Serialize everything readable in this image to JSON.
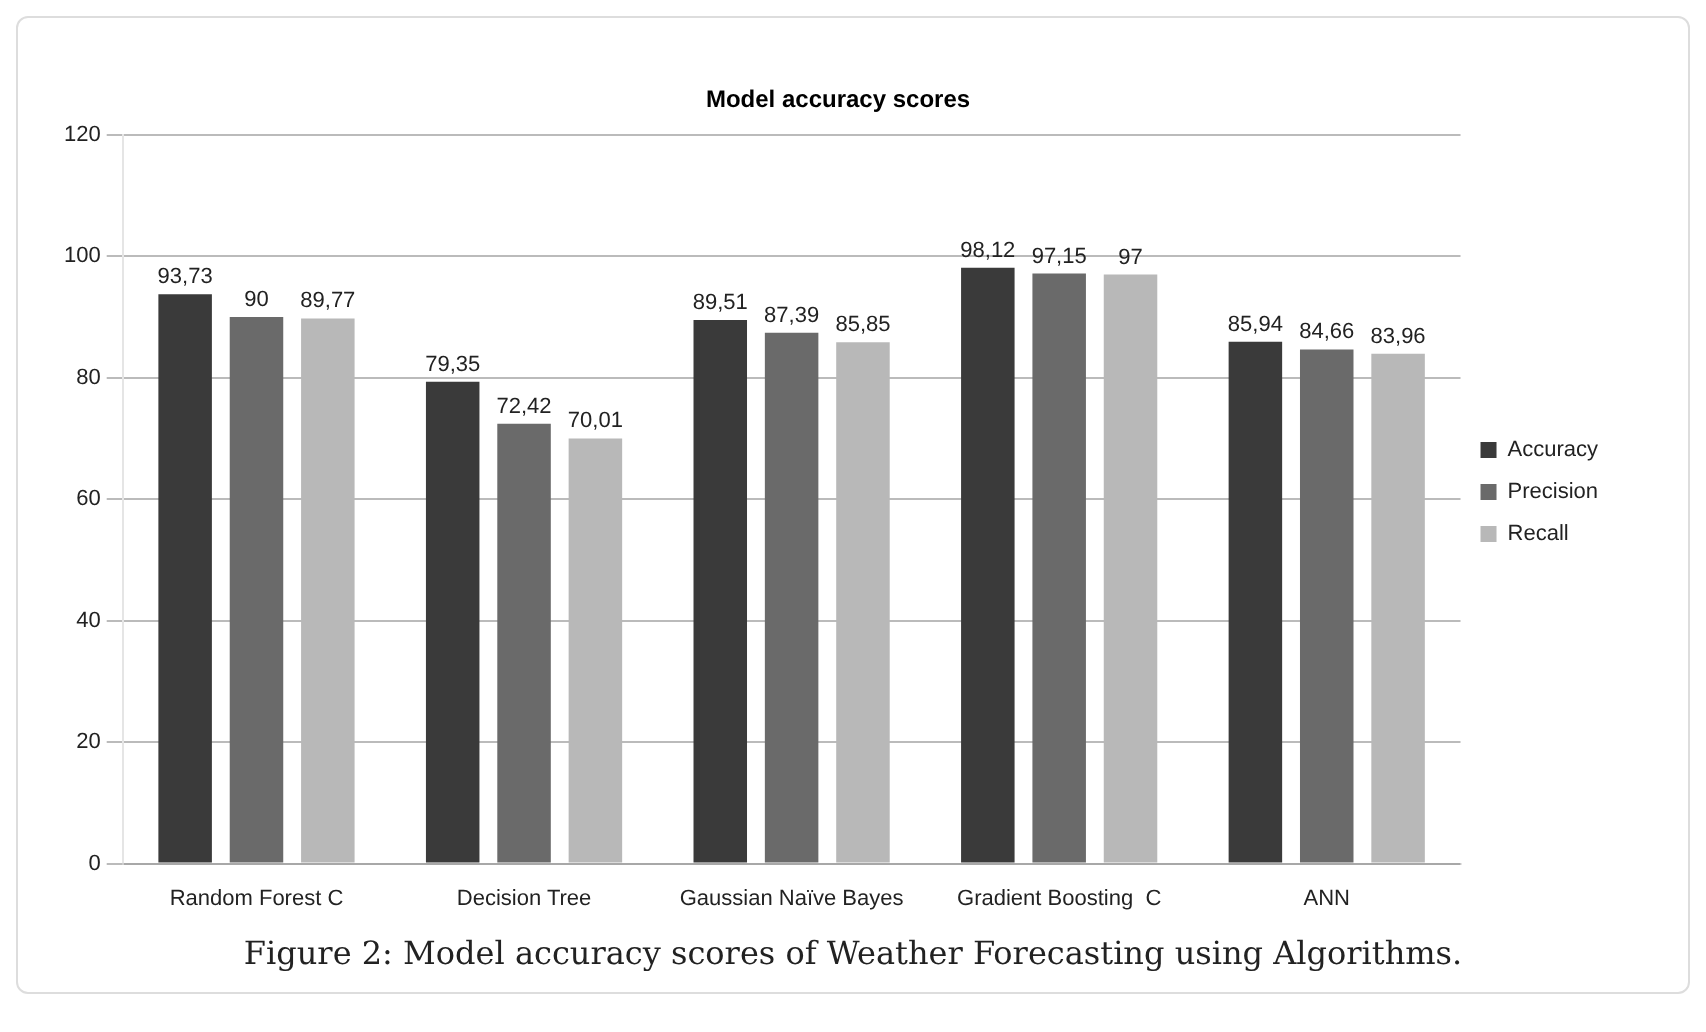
{
  "chart_data": {
    "type": "bar",
    "title": "Model accuracy scores",
    "categories": [
      "Random Forest C",
      "Decision Tree",
      "Gaussian Naïve Bayes",
      "Gradient Boosting  C",
      "ANN"
    ],
    "series": [
      {
        "name": "Accuracy",
        "color": "#3a3a3a",
        "values": [
          93.73,
          79.35,
          89.51,
          98.12,
          85.94
        ],
        "value_labels": [
          "93,73",
          "79,35",
          "89,51",
          "98,12",
          "85,94"
        ]
      },
      {
        "name": "Precision",
        "color": "#6a6a6a",
        "values": [
          90,
          72.42,
          87.39,
          97.15,
          84.66
        ],
        "value_labels": [
          "90",
          "72,42",
          "87,39",
          "97,15",
          "84,66"
        ]
      },
      {
        "name": "Recall",
        "color": "#b8b8b8",
        "values": [
          89.77,
          70.01,
          85.85,
          97,
          83.96
        ],
        "value_labels": [
          "89,77",
          "70,01",
          "85,85",
          "97",
          "83,96"
        ]
      }
    ],
    "ylim": [
      0,
      120
    ],
    "yticks": [
      0,
      20,
      40,
      60,
      80,
      100,
      120
    ],
    "grid": "y",
    "legend": "right",
    "annotations": [
      "Figure 2: Model accuracy scores of Weather Forecasting using Algorithms."
    ]
  }
}
